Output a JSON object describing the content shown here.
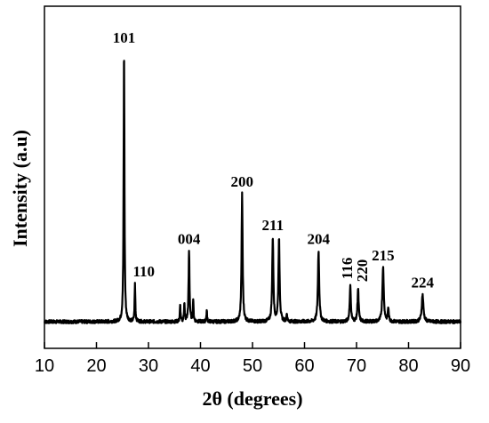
{
  "chart_data": {
    "type": "line",
    "title": "",
    "xlabel": "2θ (degrees)",
    "ylabel": "Intensity (a.u)",
    "xlim": [
      10,
      90
    ],
    "ylim": [
      0,
      1
    ],
    "grid": false,
    "legend": "none",
    "x_ticks": [
      "10",
      "20",
      "30",
      "40",
      "50",
      "60",
      "70",
      "80",
      "90"
    ],
    "peaks": [
      {
        "x": 25.3,
        "y": 1.0,
        "w": 0.35,
        "label": "101"
      },
      {
        "x": 27.4,
        "y": 0.14,
        "w": 0.3,
        "label": "110"
      },
      {
        "x": 36.1,
        "y": 0.06,
        "w": 0.3,
        "label": ""
      },
      {
        "x": 36.9,
        "y": 0.07,
        "w": 0.3,
        "label": ""
      },
      {
        "x": 37.8,
        "y": 0.26,
        "w": 0.4,
        "label": "004"
      },
      {
        "x": 38.6,
        "y": 0.08,
        "w": 0.3,
        "label": ""
      },
      {
        "x": 41.2,
        "y": 0.04,
        "w": 0.3,
        "label": ""
      },
      {
        "x": 48.0,
        "y": 0.47,
        "w": 0.45,
        "label": "200"
      },
      {
        "x": 53.9,
        "y": 0.31,
        "w": 0.5,
        "label": "211"
      },
      {
        "x": 55.1,
        "y": 0.3,
        "w": 0.5,
        "label": ""
      },
      {
        "x": 56.6,
        "y": 0.03,
        "w": 0.3,
        "label": ""
      },
      {
        "x": 62.7,
        "y": 0.26,
        "w": 0.55,
        "label": "204"
      },
      {
        "x": 68.8,
        "y": 0.13,
        "w": 0.5,
        "label": "116"
      },
      {
        "x": 70.3,
        "y": 0.12,
        "w": 0.5,
        "label": "220"
      },
      {
        "x": 75.1,
        "y": 0.2,
        "w": 0.6,
        "label": "215"
      },
      {
        "x": 76.1,
        "y": 0.05,
        "w": 0.4,
        "label": ""
      },
      {
        "x": 82.7,
        "y": 0.1,
        "w": 0.7,
        "label": "224"
      }
    ]
  },
  "colors": {
    "line": "#000000",
    "axis": "#000000",
    "background": "#ffffff"
  }
}
